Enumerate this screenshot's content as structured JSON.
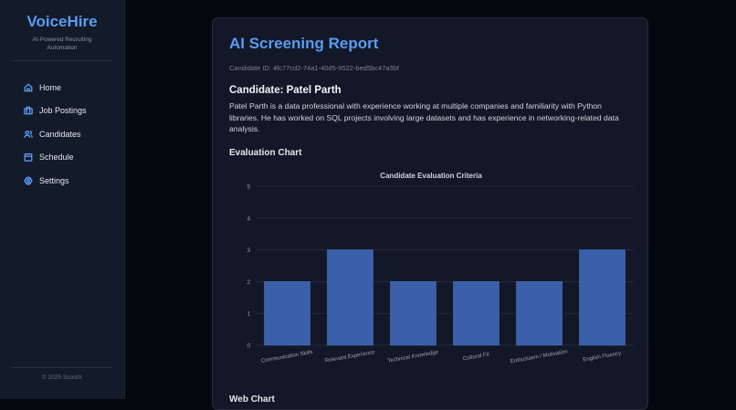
{
  "sidebar": {
    "brand": "VoiceHire",
    "tagline": "AI-Powered Recruiting Automation",
    "items": [
      {
        "label": "Home",
        "icon": "home-icon"
      },
      {
        "label": "Job Postings",
        "icon": "briefcase-icon"
      },
      {
        "label": "Candidates",
        "icon": "users-icon"
      },
      {
        "label": "Schedule",
        "icon": "calendar-icon"
      },
      {
        "label": "Settings",
        "icon": "gear-icon"
      }
    ],
    "footer": "© 2025 ScoutX"
  },
  "report": {
    "title": "AI Screening Report",
    "candidate_id": "Candidate ID: 4fc77cd2-74a1-40d5-9522-bed5bc47a3bf",
    "candidate_heading": "Candidate: Patel Parth",
    "summary": "Patel Parth is a data professional with experience working at multiple companies and familiarity with Python libraries. He has worked on SQL projects involving large datasets and has experience in networking-related data analysis.",
    "evaluation_heading": "Evaluation Chart",
    "web_heading": "Web Chart"
  },
  "colors": {
    "accent": "#5b9bf0",
    "bar": "#3b5fa8"
  },
  "chart_data": {
    "type": "bar",
    "title": "Candidate Evaluation Criteria",
    "categories": [
      "Communication Skills",
      "Relevant Experience",
      "Technical Knowledge",
      "Cultural Fit",
      "Enthusiasm / Motivation",
      "English Fluency"
    ],
    "values": [
      2,
      3,
      2,
      2,
      2,
      3
    ],
    "ylim": [
      0,
      5
    ],
    "yticks": [
      "0",
      "1",
      "2",
      "3",
      "4",
      "5"
    ],
    "grid": true
  }
}
